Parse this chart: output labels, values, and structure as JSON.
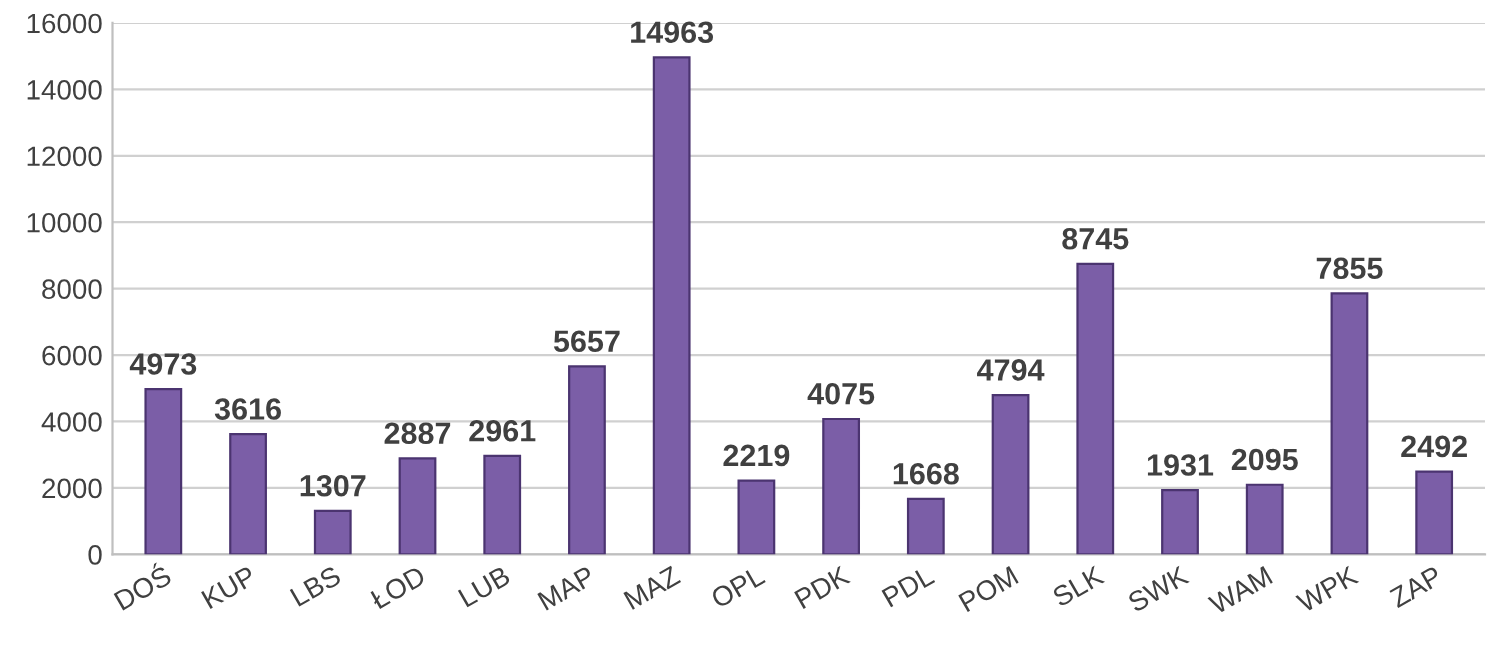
{
  "chart_data": {
    "type": "bar",
    "categories": [
      "DOŚ",
      "KUP",
      "LBS",
      "ŁOD",
      "LUB",
      "MAP",
      "MAZ",
      "OPL",
      "PDK",
      "PDL",
      "POM",
      "SLK",
      "SWK",
      "WAM",
      "WPK",
      "ZAP"
    ],
    "values": [
      4973,
      3616,
      1307,
      2887,
      2961,
      5657,
      14963,
      2219,
      4075,
      1668,
      4794,
      8745,
      1931,
      2095,
      7855,
      2492
    ],
    "color": "#7b5ea7",
    "ylim": [
      0,
      16000
    ],
    "yticks": [
      0,
      2000,
      4000,
      6000,
      8000,
      10000,
      12000,
      14000,
      16000
    ],
    "grid": "y",
    "data_labels": true,
    "legend": false
  }
}
